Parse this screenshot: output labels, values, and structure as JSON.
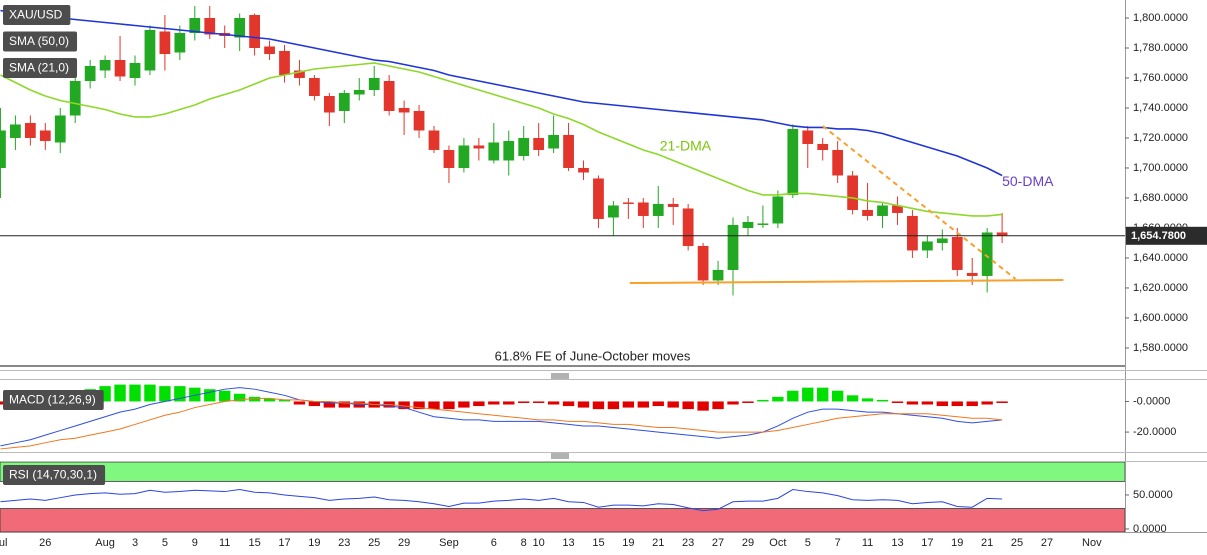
{
  "chart_data": [
    {
      "type": "candlestick",
      "categories": [
        "Jul",
        null,
        null,
        "26",
        null,
        null,
        null,
        "Aug",
        null,
        "3",
        null,
        "5",
        null,
        "9",
        null,
        "11",
        null,
        "15",
        null,
        "17",
        null,
        "19",
        null,
        "23",
        null,
        "25",
        null,
        "29",
        null,
        null,
        "Sep",
        null,
        null,
        "6",
        null,
        "8",
        "10",
        null,
        "13",
        null,
        "15",
        null,
        "19",
        null,
        "21",
        null,
        "23",
        null,
        "27",
        null,
        "29",
        null,
        "Oct",
        null,
        "5",
        null,
        "7",
        null,
        "11",
        null,
        "13",
        null,
        "17",
        null,
        "19",
        null,
        "21",
        null,
        "25",
        null,
        "27",
        null,
        null,
        "Nov"
      ],
      "xlim": [
        -0.03,
        75.22
      ],
      "ylim": [
        1565.3,
        1812
      ],
      "yticks": [
        {
          "value": 1580,
          "label": "1,580.0000"
        },
        {
          "value": 1600,
          "label": "1,600.0000"
        },
        {
          "value": 1620,
          "label": "1,620.0000"
        },
        {
          "value": 1640,
          "label": "1,640.0000"
        },
        {
          "value": 1660,
          "label": "1,660.0000"
        },
        {
          "value": 1680,
          "label": "1,680.0000"
        },
        {
          "value": 1700,
          "label": "1,700.0000"
        },
        {
          "value": 1720,
          "label": "1,720.0000"
        },
        {
          "value": 1740,
          "label": "1,740.0000"
        },
        {
          "value": 1760,
          "label": "1,760.0000"
        },
        {
          "value": 1780,
          "label": "1,780.0000"
        },
        {
          "value": 1800,
          "label": "1,800.0000"
        }
      ],
      "series": [
        {
          "name": "XAU/USD",
          "up_color": "#22a822",
          "down_color": "#e2362c",
          "open": [
            1700,
            1720,
            1730,
            1725,
            1717,
            1735,
            1758,
            1765,
            1772,
            1760,
            1765,
            1791,
            1777,
            1790,
            1800,
            1790,
            1787,
            1802,
            1781,
            1778,
            1765,
            1760,
            1748,
            1738,
            1749,
            1752,
            1758,
            1740,
            1738,
            1725,
            1712,
            1700,
            1715,
            1705,
            1705,
            1708,
            1720,
            1713,
            1722,
            1700,
            1693,
            1667,
            1677,
            1677,
            1668,
            1676,
            1673,
            1648,
            1625,
            1632,
            1660,
            1662,
            1663,
            1682,
            1725,
            1716,
            1712,
            1695,
            1672,
            1668,
            1675,
            1668,
            1645,
            1650,
            1654,
            1630,
            1628,
            1657,
            null,
            null,
            null,
            null,
            null,
            null
          ],
          "high": [
            1740,
            1735,
            1735,
            1730,
            1740,
            1762,
            1772,
            1775,
            1788,
            1775,
            1795,
            1802,
            1795,
            1808,
            1808,
            1795,
            1803,
            1803,
            1785,
            1782,
            1772,
            1762,
            1750,
            1752,
            1760,
            1768,
            1762,
            1745,
            1742,
            1728,
            1715,
            1720,
            1720,
            1730,
            1725,
            1728,
            1730,
            1735,
            1730,
            1705,
            1695,
            1678,
            1680,
            1680,
            1688,
            1680,
            1676,
            1650,
            1638,
            1667,
            1668,
            1675,
            1685,
            1729,
            1728,
            1720,
            1718,
            1698,
            1690,
            1677,
            1681,
            1672,
            1655,
            1659,
            1660,
            1640,
            1660,
            1670,
            null,
            null,
            null,
            null,
            null,
            null
          ],
          "low": [
            1680,
            1712,
            1715,
            1712,
            1710,
            1730,
            1753,
            1760,
            1758,
            1755,
            1762,
            1765,
            1772,
            1785,
            1786,
            1780,
            1778,
            1775,
            1772,
            1757,
            1755,
            1745,
            1728,
            1730,
            1745,
            1748,
            1735,
            1722,
            1720,
            1710,
            1690,
            1697,
            1705,
            1703,
            1695,
            1705,
            1708,
            1710,
            1698,
            1692,
            1660,
            1655,
            1666,
            1660,
            1660,
            1662,
            1645,
            1622,
            1622,
            1615,
            1655,
            1660,
            1660,
            1680,
            1700,
            1705,
            1690,
            1669,
            1665,
            1660,
            1662,
            1640,
            1640,
            1645,
            1628,
            1622,
            1617,
            1650,
            null,
            null,
            null,
            null,
            null,
            null
          ],
          "close": [
            1725,
            1729,
            1720,
            1718,
            1735,
            1758,
            1768,
            1772,
            1761,
            1770,
            1792,
            1776,
            1790,
            1800,
            1789,
            1788,
            1800,
            1780,
            1776,
            1762,
            1760,
            1748,
            1737,
            1750,
            1752,
            1760,
            1738,
            1737,
            1725,
            1712,
            1700,
            1715,
            1713,
            1717,
            1718,
            1720,
            1712,
            1722,
            1700,
            1697,
            1666,
            1675,
            1676,
            1668,
            1676,
            1674,
            1648,
            1625,
            1632,
            1662,
            1664,
            1663,
            1681,
            1726,
            1716,
            1712,
            1695,
            1672,
            1668,
            1675,
            1670,
            1645,
            1651,
            1653,
            1632,
            1628,
            1657,
            1654.78,
            null,
            null,
            null,
            null,
            null,
            null
          ]
        },
        {
          "name": "SMA (50,0)",
          "color": "#1f35d6",
          "values": [
            1805,
            1803,
            1802,
            1801,
            1800,
            1799,
            1798,
            1797,
            1796,
            1795,
            1794,
            1793,
            1792,
            1791,
            1790,
            1789,
            1788,
            1787,
            1786,
            1784,
            1782,
            1780,
            1778,
            1776,
            1774,
            1772,
            1771,
            1769,
            1767,
            1765,
            1762,
            1760,
            1758,
            1756,
            1754,
            1752,
            1750,
            1748,
            1746,
            1744,
            1743,
            1742,
            1741,
            1740,
            1739,
            1738,
            1737,
            1736,
            1735,
            1734,
            1733,
            1732,
            1730,
            1728,
            1727,
            1727,
            1726,
            1726,
            1725,
            1723,
            1720,
            1717,
            1714,
            1711,
            1708,
            1704,
            1700,
            1695,
            null,
            null,
            null,
            null,
            null,
            null
          ]
        },
        {
          "name": "SMA (21,0)",
          "color": "#8ed82a",
          "values": [
            1762,
            1757,
            1752,
            1748,
            1745,
            1743,
            1741,
            1739,
            1736,
            1734,
            1734,
            1736,
            1739,
            1742,
            1746,
            1749,
            1752,
            1756,
            1760,
            1762,
            1764,
            1766,
            1767,
            1768,
            1769,
            1770,
            1768,
            1766,
            1764,
            1761,
            1758,
            1755,
            1752,
            1749,
            1746,
            1743,
            1740,
            1736,
            1733,
            1729,
            1724,
            1720,
            1716,
            1712,
            1709,
            1705,
            1701,
            1697,
            1693,
            1689,
            1685,
            1682,
            1682,
            1683,
            1683,
            1682,
            1681,
            1680,
            1678,
            1677,
            1675,
            1673,
            1671,
            1670,
            1669,
            1668,
            1668,
            1669,
            null,
            null,
            null,
            null,
            null,
            null
          ]
        }
      ],
      "lines": [
        {
          "color": "#f7a02a",
          "dashed": true,
          "x": [
            55,
            67.9
          ],
          "y": [
            1728,
            1626
          ]
        },
        {
          "color": "#f7a02a",
          "dashed": false,
          "x": [
            42.1,
            71.1
          ],
          "y": [
            1623.3,
            1625.3
          ]
        }
      ],
      "hlines": [
        {
          "value": 1568,
          "label": "61.8% FE of June-October moves"
        }
      ],
      "annotations": [
        {
          "text": "21-DMA",
          "x": 44.1,
          "y": 1714,
          "color": "#7ac70c"
        },
        {
          "text": "50-DMA",
          "x": 67,
          "y": 1690.5,
          "color": "#6a3fc8"
        }
      ],
      "last_price": {
        "value": 1654.78,
        "label": "1,654.7800"
      }
    },
    {
      "type": "macd",
      "label": "MACD (12,26,9)",
      "ylim": [
        -33,
        14
      ],
      "yticks": [
        {
          "value": 0,
          "label": "-0.0000"
        },
        {
          "value": -20,
          "label": "-20.0000"
        }
      ],
      "histogram": {
        "up_color": "#00e000",
        "down_color": "#e00000",
        "values": [
          -2,
          -1,
          0.5,
          1,
          3,
          6,
          8,
          10,
          11,
          11,
          11,
          10,
          10,
          9,
          8,
          7,
          5,
          3,
          2,
          1,
          -2,
          -3,
          -4,
          -4,
          -4,
          -4,
          -4,
          -5,
          -5,
          -5,
          -5,
          -4,
          -3,
          -2,
          -2,
          -1,
          -1,
          -2,
          -3,
          -4,
          -5,
          -5,
          -4,
          -4,
          -3,
          -4,
          -5,
          -6,
          -5,
          -2,
          -1,
          1,
          3,
          7,
          9,
          9,
          7,
          4,
          2,
          1,
          -1,
          -2,
          -2,
          -3,
          -3,
          -3,
          -2,
          -1,
          null,
          null,
          null,
          null,
          null,
          null
        ]
      },
      "series": [
        {
          "color": "#2f4fe0",
          "values": [
            -29,
            -27,
            -25,
            -22,
            -19,
            -16,
            -13,
            -10,
            -7,
            -5,
            -2,
            0,
            2,
            4,
            6,
            8,
            9,
            8,
            6,
            4,
            1,
            0,
            -1,
            -1,
            -2,
            -2,
            -3,
            -4,
            -7,
            -10,
            -11,
            -12,
            -12,
            -13,
            -13,
            -13,
            -13,
            -14,
            -15,
            -16,
            -16,
            -17,
            -18,
            -19,
            -20,
            -21,
            -22,
            -23,
            -24,
            -23,
            -22,
            -20,
            -16,
            -11,
            -7,
            -5,
            -5,
            -6,
            -7,
            -7,
            -8,
            -9,
            -10,
            -11,
            -13,
            -14,
            -13,
            -12,
            null,
            null,
            null,
            null,
            null,
            null
          ]
        },
        {
          "color": "#f07820",
          "values": [
            -31,
            -30,
            -29,
            -27,
            -25,
            -24,
            -22,
            -20,
            -18,
            -15,
            -12,
            -9,
            -7,
            -4,
            -2,
            0,
            1,
            2,
            2,
            1,
            1,
            0,
            0,
            -1,
            -1,
            -2,
            -2,
            -3,
            -4,
            -5,
            -6,
            -7,
            -8,
            -9,
            -10,
            -11,
            -12,
            -12,
            -13,
            -13,
            -14,
            -15,
            -15,
            -16,
            -17,
            -17,
            -18,
            -19,
            -20,
            -20,
            -20,
            -20,
            -19,
            -17,
            -15,
            -13,
            -11,
            -10,
            -9,
            -8,
            -8,
            -8,
            -8,
            -9,
            -10,
            -11,
            -11,
            -12,
            null,
            null,
            null,
            null,
            null,
            null
          ]
        }
      ]
    },
    {
      "type": "line",
      "label": "RSI (14,70,30,1)",
      "ylim": [
        -4.5,
        98.5
      ],
      "yticks": [
        {
          "value": 50,
          "label": "50.0000"
        },
        {
          "value": 0,
          "label": "0.0000"
        }
      ],
      "overbought": 70,
      "oversold": 30,
      "overbought_color": "#80f880",
      "oversold_color": "#f06a78",
      "series": [
        {
          "color": "#2a44e0",
          "values": [
            40,
            42,
            44,
            42,
            46,
            50,
            52,
            53,
            51,
            52,
            57,
            54,
            55,
            57,
            56,
            55,
            58,
            54,
            53,
            50,
            48,
            46,
            42,
            44,
            45,
            47,
            43,
            42,
            40,
            37,
            33,
            38,
            38,
            41,
            42,
            44,
            42,
            45,
            40,
            39,
            32,
            35,
            35,
            34,
            37,
            36,
            31,
            27,
            29,
            40,
            41,
            41,
            45,
            58,
            55,
            53,
            49,
            43,
            42,
            43,
            42,
            37,
            39,
            40,
            33,
            32,
            45,
            44,
            null,
            null,
            null,
            null,
            null,
            null
          ]
        }
      ]
    }
  ]
}
